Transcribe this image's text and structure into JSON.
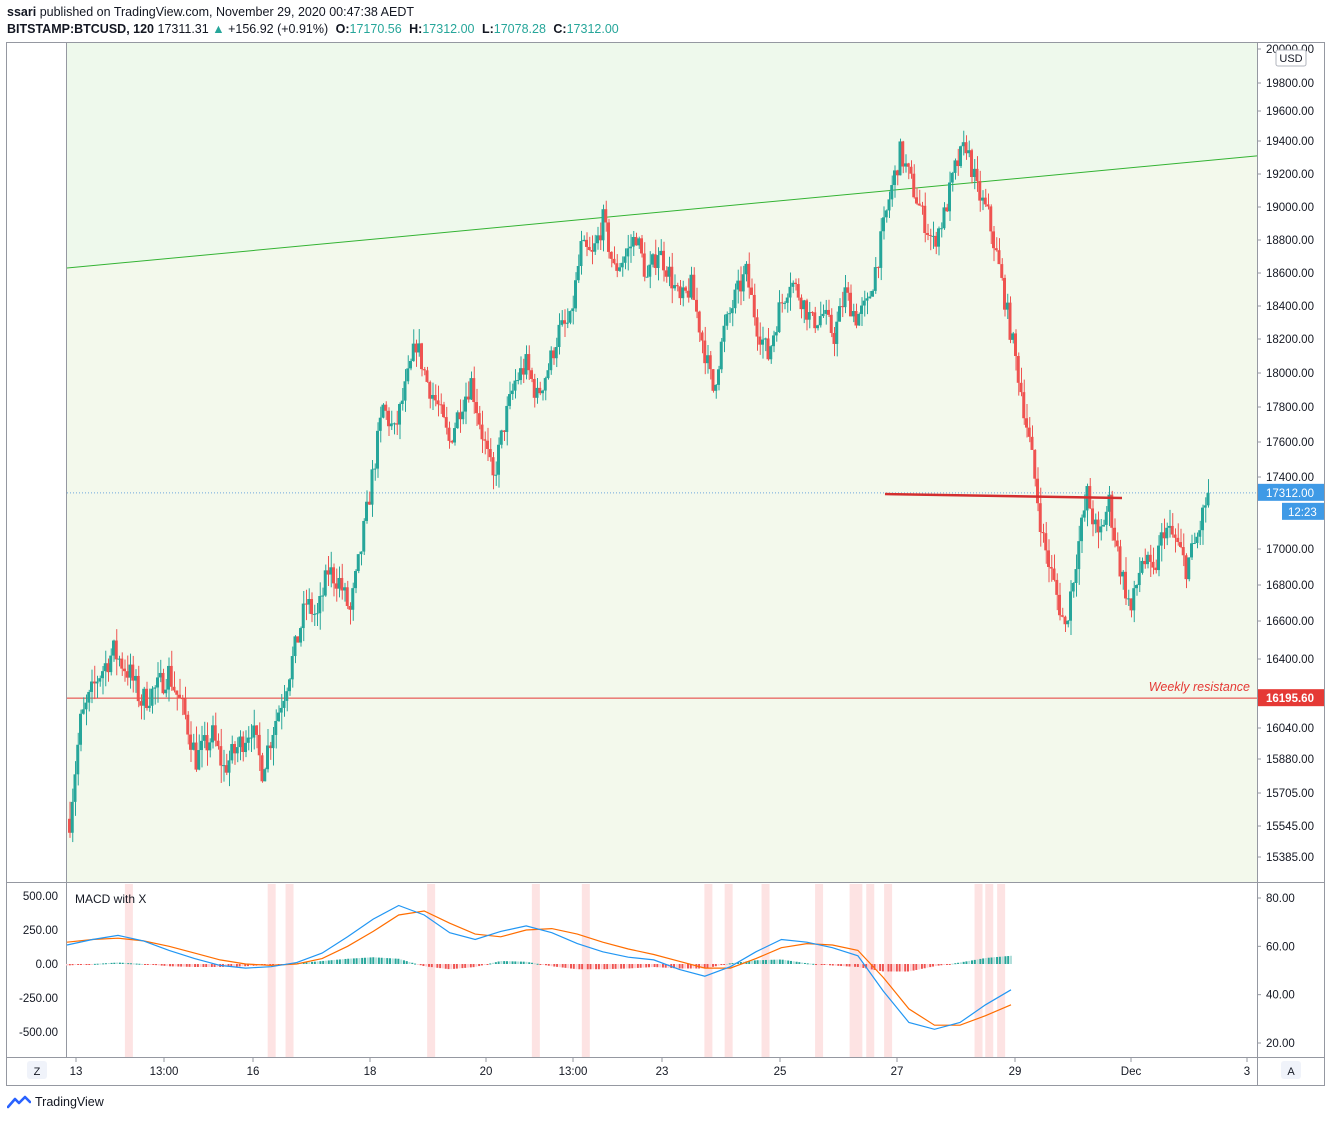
{
  "header": {
    "publisher": "ssari",
    "published_text": "published on TradingView.com, November 29, 2020 00:47:38 AEDT",
    "symbol": "BITSTAMP:BTCUSD, 120",
    "last": "17311.31",
    "change": "+156.92 (+0.91%)",
    "o_label": "O:",
    "o_value": "17170.56",
    "h_label": "H:",
    "h_value": "17312.00",
    "l_label": "L:",
    "l_value": "17078.28",
    "c_label": "C:",
    "c_value": "17312.00"
  },
  "footer": {
    "brand": "TradingView"
  },
  "corner_buttons": {
    "left": "Z",
    "right": "A"
  },
  "colors": {
    "up": "#26a69a",
    "down": "#ef5350",
    "channel_fill": "#eef8e8",
    "channel_line": "#33b333",
    "resistance": "#e53935",
    "macd": "#2196f3",
    "signal": "#ff6d00"
  },
  "chart_data": [
    {
      "type": "candlestick",
      "currency_label": "USD",
      "y_ticks": [
        "20000.00",
        "19800.00",
        "19600.00",
        "19400.00",
        "19200.00",
        "19000.00",
        "18800.00",
        "18600.00",
        "18400.00",
        "18200.00",
        "18000.00",
        "17800.00",
        "17600.00",
        "17400.00",
        "17000.00",
        "16800.00",
        "16600.00",
        "16400.00",
        "16040.00",
        "15880.00",
        "15705.00",
        "15545.00",
        "15385.00"
      ],
      "y_tick_values": [
        20000,
        19800,
        19600,
        19400,
        19200,
        19000,
        18800,
        18600,
        18400,
        18200,
        18000,
        17800,
        17600,
        17400,
        17000,
        16800,
        16600,
        16400,
        16040,
        15880,
        15705,
        15545,
        15385
      ],
      "x_ticks": [
        "13",
        "13:00",
        "16",
        "18",
        "20",
        "13:00",
        "23",
        "25",
        "27",
        "29",
        "Dec",
        "3"
      ],
      "price_label": "17312.00",
      "countdown_label": "12:23",
      "resistance_level": 16195.6,
      "resistance_label_value": "16195.60",
      "resistance_annotation": "Weekly resistance",
      "short_resistance_level": 17300,
      "trendline": {
        "start_value": 18630,
        "end_value": 19310
      },
      "path_points": [
        [
          0,
          15580
        ],
        [
          4,
          16070
        ],
        [
          10,
          16300
        ],
        [
          16,
          16440
        ],
        [
          22,
          16320
        ],
        [
          26,
          16180
        ],
        [
          32,
          16250
        ],
        [
          36,
          16330
        ],
        [
          42,
          16100
        ],
        [
          46,
          15880
        ],
        [
          52,
          16000
        ],
        [
          56,
          15830
        ],
        [
          62,
          15960
        ],
        [
          66,
          16050
        ],
        [
          70,
          15830
        ],
        [
          74,
          16040
        ],
        [
          78,
          16230
        ],
        [
          82,
          16450
        ],
        [
          86,
          16700
        ],
        [
          90,
          16620
        ],
        [
          94,
          16880
        ],
        [
          98,
          16820
        ],
        [
          102,
          16650
        ],
        [
          106,
          17000
        ],
        [
          110,
          17400
        ],
        [
          114,
          17800
        ],
        [
          118,
          17650
        ],
        [
          122,
          17900
        ],
        [
          126,
          18180
        ],
        [
          130,
          17950
        ],
        [
          134,
          17800
        ],
        [
          138,
          17600
        ],
        [
          142,
          17800
        ],
        [
          146,
          17950
        ],
        [
          150,
          17650
        ],
        [
          154,
          17380
        ],
        [
          158,
          17700
        ],
        [
          162,
          17950
        ],
        [
          166,
          18050
        ],
        [
          170,
          17860
        ],
        [
          174,
          18030
        ],
        [
          178,
          18250
        ],
        [
          182,
          18300
        ],
        [
          186,
          18750
        ],
        [
          190,
          18700
        ],
        [
          194,
          18920
        ],
        [
          198,
          18620
        ],
        [
          202,
          18700
        ],
        [
          206,
          18830
        ],
        [
          210,
          18560
        ],
        [
          214,
          18740
        ],
        [
          218,
          18600
        ],
        [
          222,
          18420
        ],
        [
          226,
          18520
        ],
        [
          230,
          18200
        ],
        [
          234,
          17900
        ],
        [
          238,
          18250
        ],
        [
          242,
          18450
        ],
        [
          246,
          18600
        ],
        [
          250,
          18280
        ],
        [
          254,
          18100
        ],
        [
          258,
          18380
        ],
        [
          262,
          18560
        ],
        [
          266,
          18450
        ],
        [
          270,
          18300
        ],
        [
          274,
          18350
        ],
        [
          278,
          18220
        ],
        [
          282,
          18480
        ],
        [
          286,
          18330
        ],
        [
          290,
          18400
        ],
        [
          294,
          18700
        ],
        [
          298,
          19050
        ],
        [
          302,
          19330
        ],
        [
          306,
          19150
        ],
        [
          310,
          18950
        ],
        [
          314,
          18780
        ],
        [
          318,
          18950
        ],
        [
          322,
          19230
        ],
        [
          326,
          19380
        ],
        [
          330,
          19100
        ],
        [
          334,
          18950
        ],
        [
          338,
          18630
        ],
        [
          342,
          18260
        ],
        [
          346,
          17900
        ],
        [
          350,
          17500
        ],
        [
          354,
          17050
        ],
        [
          358,
          16800
        ],
        [
          362,
          16560
        ],
        [
          366,
          16950
        ],
        [
          370,
          17300
        ],
        [
          374,
          17050
        ],
        [
          378,
          17260
        ],
        [
          382,
          16900
        ],
        [
          386,
          16650
        ],
        [
          390,
          16950
        ],
        [
          394,
          16850
        ],
        [
          398,
          17120
        ],
        [
          402,
          17050
        ],
        [
          406,
          16900
        ],
        [
          410,
          17060
        ],
        [
          414,
          17312
        ]
      ]
    },
    {
      "type": "line",
      "title": "MACD with X",
      "y_ticks_left": [
        "500.00",
        "250.00",
        "0.00",
        "-250.00",
        "-500.00"
      ],
      "y_tick_values_left": [
        500,
        250,
        0,
        -250,
        -500
      ],
      "y_ticks_right": [
        "80.00",
        "60.00",
        "40.00",
        "20.00"
      ],
      "y_tick_values_right": [
        80,
        60,
        40,
        20
      ],
      "series": [
        {
          "values_macd": [
            140,
            180,
            210,
            170,
            100,
            40,
            -10,
            -30,
            -20,
            10,
            80,
            200,
            330,
            430,
            360,
            230,
            180,
            240,
            280,
            230,
            150,
            90,
            50,
            30,
            -40,
            -90,
            -20,
            90,
            180,
            160,
            120,
            60,
            -200,
            -430,
            -480,
            -430,
            -300,
            -190
          ]
        },
        {
          "values_signal": [
            160,
            180,
            190,
            170,
            130,
            80,
            30,
            0,
            -10,
            0,
            40,
            130,
            240,
            360,
            390,
            300,
            220,
            200,
            250,
            260,
            220,
            160,
            110,
            70,
            20,
            -30,
            -30,
            40,
            120,
            150,
            140,
            100,
            -100,
            -330,
            -450,
            -450,
            -380,
            -300
          ]
        }
      ],
      "highlight_columns": [
        0.052,
        0.172,
        0.187,
        0.306,
        0.394,
        0.436,
        0.539,
        0.556,
        0.587,
        0.632,
        0.661,
        0.665,
        0.675,
        0.69,
        0.766,
        0.775,
        0.785
      ]
    }
  ]
}
